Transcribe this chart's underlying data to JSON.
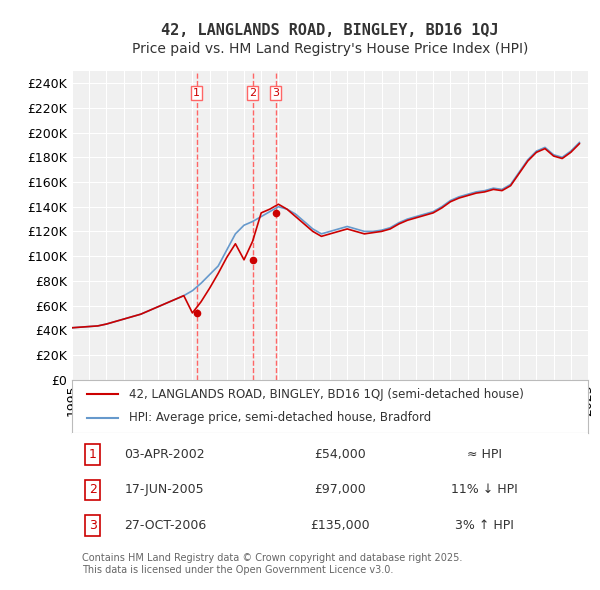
{
  "title": "42, LANGLANDS ROAD, BINGLEY, BD16 1QJ",
  "subtitle": "Price paid vs. HM Land Registry's House Price Index (HPI)",
  "ylabel": "",
  "ylim": [
    0,
    250000
  ],
  "yticks": [
    0,
    20000,
    40000,
    60000,
    80000,
    100000,
    120000,
    140000,
    160000,
    180000,
    200000,
    220000,
    240000
  ],
  "ytick_labels": [
    "£0",
    "£20K",
    "£40K",
    "£60K",
    "£80K",
    "£100K",
    "£120K",
    "£140K",
    "£160K",
    "£180K",
    "£200K",
    "£220K",
    "£240K"
  ],
  "background_color": "#ffffff",
  "plot_bg_color": "#f0f0f0",
  "grid_color": "#ffffff",
  "sale_dates": [
    "2002-04-03",
    "2005-06-17",
    "2006-10-27"
  ],
  "sale_prices": [
    54000,
    97000,
    135000
  ],
  "sale_labels": [
    "1",
    "2",
    "3"
  ],
  "hpi_line_color": "#6699cc",
  "price_line_color": "#cc0000",
  "vline_color": "#ff6666",
  "legend_entries": [
    "42, LANGLANDS ROAD, BINGLEY, BD16 1QJ (semi-detached house)",
    "HPI: Average price, semi-detached house, Bradford"
  ],
  "table_rows": [
    {
      "num": "1",
      "date": "03-APR-2002",
      "price": "£54,000",
      "hpi": "≈ HPI"
    },
    {
      "num": "2",
      "date": "17-JUN-2005",
      "price": "£97,000",
      "hpi": "11% ↓ HPI"
    },
    {
      "num": "3",
      "date": "27-OCT-2006",
      "price": "£135,000",
      "hpi": "3% ↑ HPI"
    }
  ],
  "footer": "Contains HM Land Registry data © Crown copyright and database right 2025.\nThis data is licensed under the Open Government Licence v3.0.",
  "title_fontsize": 11,
  "subtitle_fontsize": 10,
  "tick_fontsize": 9,
  "hpi_data_x": [
    1995.0,
    1995.5,
    1996.0,
    1996.5,
    1997.0,
    1997.5,
    1998.0,
    1998.5,
    1999.0,
    1999.5,
    2000.0,
    2000.5,
    2001.0,
    2001.5,
    2002.0,
    2002.5,
    2003.0,
    2003.5,
    2004.0,
    2004.5,
    2005.0,
    2005.5,
    2006.0,
    2006.5,
    2007.0,
    2007.5,
    2008.0,
    2008.5,
    2009.0,
    2009.5,
    2010.0,
    2010.5,
    2011.0,
    2011.5,
    2012.0,
    2012.5,
    2013.0,
    2013.5,
    2014.0,
    2014.5,
    2015.0,
    2015.5,
    2016.0,
    2016.5,
    2017.0,
    2017.5,
    2018.0,
    2018.5,
    2019.0,
    2019.5,
    2020.0,
    2020.5,
    2021.0,
    2021.5,
    2022.0,
    2022.5,
    2023.0,
    2023.5,
    2024.0,
    2024.5
  ],
  "hpi_data_y": [
    42000,
    42500,
    43000,
    43500,
    45000,
    47000,
    49000,
    51000,
    53000,
    56000,
    59000,
    62000,
    65000,
    68000,
    72000,
    78000,
    85000,
    92000,
    105000,
    118000,
    125000,
    128000,
    132000,
    136000,
    140000,
    138000,
    134000,
    128000,
    122000,
    118000,
    120000,
    122000,
    124000,
    122000,
    120000,
    120000,
    121000,
    123000,
    127000,
    130000,
    132000,
    134000,
    136000,
    140000,
    145000,
    148000,
    150000,
    152000,
    153000,
    155000,
    154000,
    158000,
    168000,
    178000,
    185000,
    188000,
    182000,
    180000,
    185000,
    192000
  ],
  "price_data_x": [
    1995.0,
    1995.5,
    1996.0,
    1996.5,
    1997.0,
    1997.5,
    1998.0,
    1998.5,
    1999.0,
    1999.5,
    2000.0,
    2000.5,
    2001.0,
    2001.5,
    2002.0,
    2002.5,
    2003.0,
    2003.5,
    2004.0,
    2004.5,
    2005.0,
    2005.5,
    2006.0,
    2006.5,
    2007.0,
    2007.5,
    2008.0,
    2008.5,
    2009.0,
    2009.5,
    2010.0,
    2010.5,
    2011.0,
    2011.5,
    2012.0,
    2012.5,
    2013.0,
    2013.5,
    2014.0,
    2014.5,
    2015.0,
    2015.5,
    2016.0,
    2016.5,
    2017.0,
    2017.5,
    2018.0,
    2018.5,
    2019.0,
    2019.5,
    2020.0,
    2020.5,
    2021.0,
    2021.5,
    2022.0,
    2022.5,
    2023.0,
    2023.5,
    2024.0,
    2024.5
  ],
  "price_interp_y": [
    42000,
    42500,
    43000,
    43500,
    45000,
    47000,
    49000,
    51000,
    53000,
    56000,
    59000,
    62000,
    65000,
    68000,
    54000,
    63000,
    74000,
    86000,
    99000,
    110000,
    97000,
    112000,
    135000,
    138000,
    142000,
    138000,
    132000,
    126000,
    120000,
    116000,
    118000,
    120000,
    122000,
    120000,
    118000,
    119000,
    120000,
    122000,
    126000,
    129000,
    131000,
    133000,
    135000,
    139000,
    144000,
    147000,
    149000,
    151000,
    152000,
    154000,
    153000,
    157000,
    167000,
    177000,
    184000,
    187000,
    181000,
    179000,
    184000,
    191000
  ]
}
